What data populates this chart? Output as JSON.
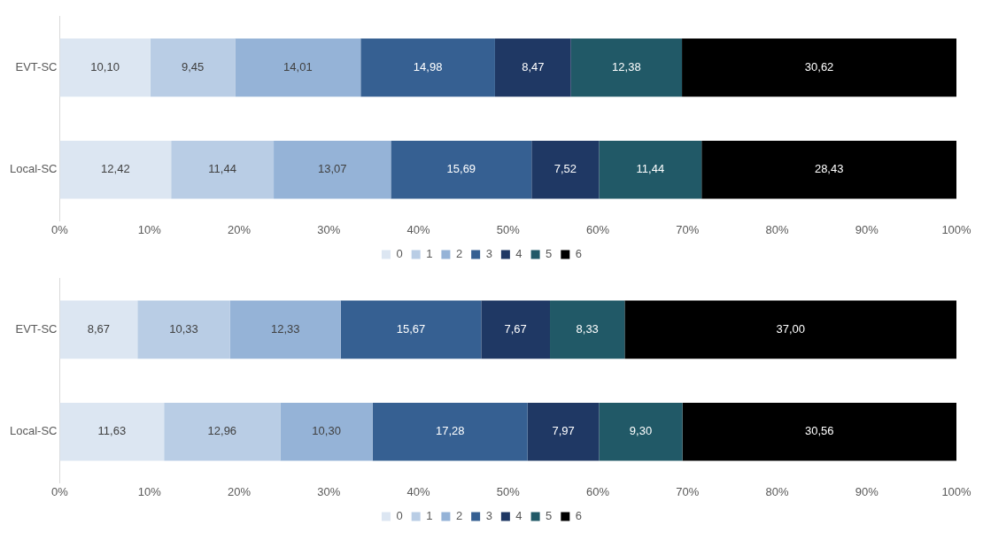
{
  "chart_data": [
    {
      "type": "bar",
      "orientation": "horizontal",
      "stacked": true,
      "categories": [
        "EVT-SC",
        "Local-SC"
      ],
      "xlim": [
        0,
        100
      ],
      "xticks": [
        {
          "value": 0,
          "label": "0%"
        },
        {
          "value": 10,
          "label": "10%"
        },
        {
          "value": 20,
          "label": "20%"
        },
        {
          "value": 30,
          "label": "30%"
        },
        {
          "value": 40,
          "label": "40%"
        },
        {
          "value": 50,
          "label": "50%"
        },
        {
          "value": 60,
          "label": "60%"
        },
        {
          "value": 70,
          "label": "70%"
        },
        {
          "value": 80,
          "label": "80%"
        },
        {
          "value": 90,
          "label": "90%"
        },
        {
          "value": 100,
          "label": "100%"
        }
      ],
      "legend": "bottom",
      "grid": false,
      "series": [
        {
          "name": "0",
          "color": "#dce6f2",
          "values": [
            10.1,
            12.42
          ],
          "value_labels": [
            "10,10",
            "12,42"
          ]
        },
        {
          "name": "1",
          "color": "#b9cde5",
          "values": [
            9.45,
            11.44
          ],
          "value_labels": [
            "9,45",
            "11,44"
          ]
        },
        {
          "name": "2",
          "color": "#95b3d7",
          "values": [
            14.01,
            13.07
          ],
          "value_labels": [
            "14,01",
            "13,07"
          ]
        },
        {
          "name": "3",
          "color": "#366092",
          "values": [
            14.98,
            15.69
          ],
          "value_labels": [
            "14,98",
            "15,69"
          ]
        },
        {
          "name": "4",
          "color": "#1f3864",
          "values": [
            8.47,
            7.52
          ],
          "value_labels": [
            "8,47",
            "7,52"
          ]
        },
        {
          "name": "5",
          "color": "#215967",
          "values": [
            12.38,
            11.44
          ],
          "value_labels": [
            "12,38",
            "11,44"
          ]
        },
        {
          "name": "6",
          "color": "#000000",
          "values": [
            30.62,
            28.43
          ],
          "value_labels": [
            "30,62",
            "28,43"
          ]
        }
      ]
    },
    {
      "type": "bar",
      "orientation": "horizontal",
      "stacked": true,
      "categories": [
        "EVT-SC",
        "Local-SC"
      ],
      "xlim": [
        0,
        100
      ],
      "xticks": [
        {
          "value": 0,
          "label": "0%"
        },
        {
          "value": 10,
          "label": "10%"
        },
        {
          "value": 20,
          "label": "20%"
        },
        {
          "value": 30,
          "label": "30%"
        },
        {
          "value": 40,
          "label": "40%"
        },
        {
          "value": 50,
          "label": "50%"
        },
        {
          "value": 60,
          "label": "60%"
        },
        {
          "value": 70,
          "label": "70%"
        },
        {
          "value": 80,
          "label": "80%"
        },
        {
          "value": 90,
          "label": "90%"
        },
        {
          "value": 100,
          "label": "100%"
        }
      ],
      "legend": "bottom",
      "grid": false,
      "series": [
        {
          "name": "0",
          "color": "#dce6f2",
          "values": [
            8.67,
            11.63
          ],
          "value_labels": [
            "8,67",
            "11,63"
          ]
        },
        {
          "name": "1",
          "color": "#b9cde5",
          "values": [
            10.33,
            12.96
          ],
          "value_labels": [
            "10,33",
            "12,96"
          ]
        },
        {
          "name": "2",
          "color": "#95b3d7",
          "values": [
            12.33,
            10.3
          ],
          "value_labels": [
            "12,33",
            "10,30"
          ]
        },
        {
          "name": "3",
          "color": "#366092",
          "values": [
            15.67,
            17.28
          ],
          "value_labels": [
            "15,67",
            "17,28"
          ]
        },
        {
          "name": "4",
          "color": "#1f3864",
          "values": [
            7.67,
            7.97
          ],
          "value_labels": [
            "7,67",
            "7,97"
          ]
        },
        {
          "name": "5",
          "color": "#215967",
          "values": [
            8.33,
            9.3
          ],
          "value_labels": [
            "8,33",
            "9,30"
          ]
        },
        {
          "name": "6",
          "color": "#000000",
          "values": [
            37.0,
            30.56
          ],
          "value_labels": [
            "37,00",
            "30,56"
          ]
        }
      ]
    }
  ]
}
